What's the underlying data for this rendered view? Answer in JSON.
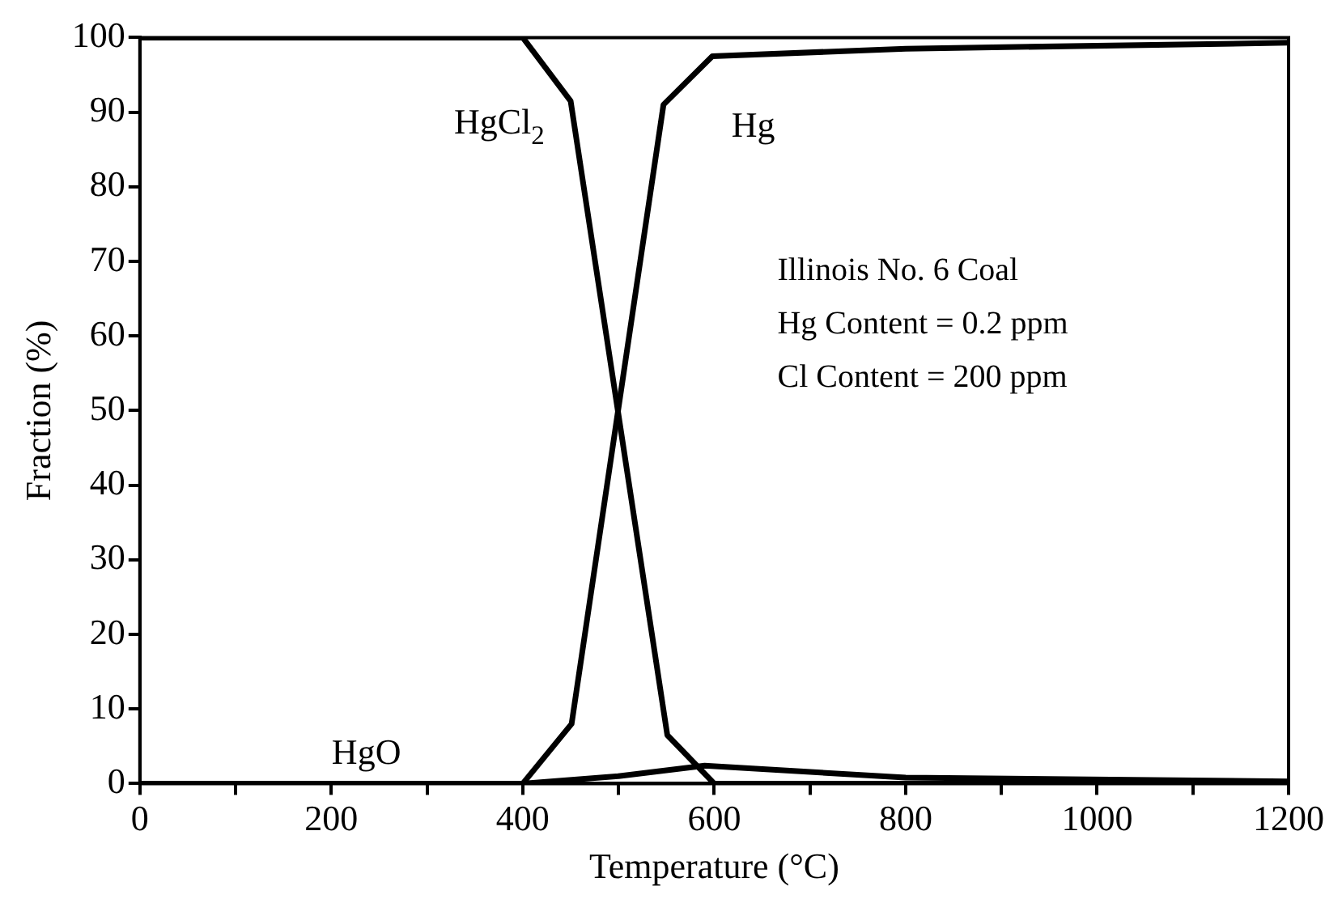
{
  "chart_data": {
    "type": "line",
    "xlabel": "Temperature (°C)",
    "ylabel": "Fraction (%)",
    "xlim": [
      0,
      1200
    ],
    "ylim": [
      0,
      100
    ],
    "xticks": [
      0,
      {
        "value": 100,
        "label": null
      },
      200,
      {
        "value": 300,
        "label": null
      },
      400,
      {
        "value": 500,
        "label": null
      },
      600,
      {
        "value": 700,
        "label": null
      },
      800,
      {
        "value": 900,
        "label": null
      },
      1000,
      {
        "value": 1100,
        "label": null
      },
      1200
    ],
    "yticks": [
      0,
      10,
      20,
      30,
      40,
      50,
      60,
      70,
      80,
      90,
      100
    ],
    "grid": false,
    "legend": false,
    "marker": "none",
    "line_style": "solid",
    "series": [
      {
        "name": "HgCl$_{2}$",
        "color": "#000000",
        "x": [
          0,
          400,
          450,
          551,
          600,
          1200
        ],
        "values": [
          100,
          100,
          91.5,
          6.5,
          0,
          0
        ]
      },
      {
        "name": "Hg",
        "color": "#000000",
        "x": [
          0,
          400,
          451,
          547,
          598,
          800,
          1200
        ],
        "values": [
          0,
          0,
          8,
          91,
          97.5,
          98.5,
          99.3
        ]
      },
      {
        "name": "HgO",
        "color": "#000000",
        "x": [
          0,
          400,
          500,
          590,
          800,
          1200
        ],
        "values": [
          0,
          0,
          1,
          2.4,
          0.8,
          0.3
        ]
      }
    ],
    "annotations": [
      "Illinois No. 6 Coal",
      "Hg Content = 0.2 ppm",
      "Cl Content = 200 ppm"
    ]
  }
}
